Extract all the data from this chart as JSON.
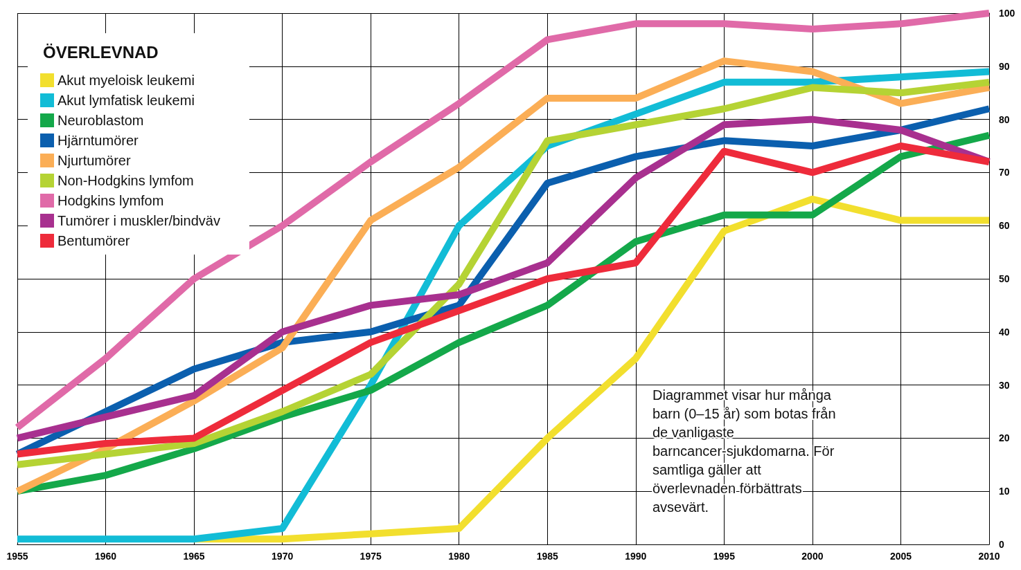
{
  "chart_data": {
    "type": "line",
    "legend_title": "ÖVERLEVNAD",
    "x": [
      1955,
      1960,
      1965,
      1970,
      1975,
      1980,
      1985,
      1990,
      1995,
      2000,
      2005,
      2010
    ],
    "xlim": [
      1955,
      2010
    ],
    "xticks": [
      1955,
      1960,
      1965,
      1970,
      1975,
      1980,
      1985,
      1990,
      1995,
      2000,
      2005,
      2010
    ],
    "ylim": [
      0,
      100
    ],
    "yticks": [
      0,
      10,
      20,
      30,
      40,
      50,
      60,
      70,
      80,
      90,
      100
    ],
    "grid": true,
    "legend": "top left",
    "marker": "none",
    "line_style": "solid",
    "series": [
      {
        "name": "Akut myeloisk leukemi",
        "color": "#f2df2e",
        "values": [
          null,
          null,
          1,
          1,
          2,
          3,
          20,
          35,
          59,
          65,
          61,
          61
        ]
      },
      {
        "name": "Akut lymfatisk leukemi",
        "color": "#12bcd6",
        "values": [
          1,
          1,
          1,
          3,
          30,
          60,
          75,
          81,
          87,
          87,
          88,
          89
        ]
      },
      {
        "name": "Neuroblastom",
        "color": "#14a84a",
        "values": [
          10,
          13,
          18,
          24,
          29,
          38,
          45,
          57,
          62,
          62,
          73,
          77
        ]
      },
      {
        "name": "Hjärntumörer",
        "color": "#0b5fae",
        "values": [
          17,
          25,
          33,
          38,
          40,
          45,
          68,
          73,
          76,
          75,
          78,
          82
        ]
      },
      {
        "name": "Njurtumörer",
        "color": "#fbae56",
        "values": [
          10,
          18,
          27,
          37,
          61,
          71,
          84,
          84,
          91,
          89,
          83,
          86
        ]
      },
      {
        "name": "Non-Hodgkins lymfom",
        "color": "#b5d334",
        "values": [
          15,
          17,
          19,
          25,
          32,
          49,
          76,
          79,
          82,
          86,
          85,
          87
        ]
      },
      {
        "name": "Hodgkins lymfom",
        "color": "#e06aa8",
        "values": [
          22,
          35,
          50,
          60,
          72,
          83,
          95,
          98,
          98,
          97,
          98,
          100
        ]
      },
      {
        "name": "Tumörer i muskler/bindväv",
        "color": "#a8308f",
        "values": [
          20,
          24,
          28,
          40,
          45,
          47,
          53,
          69,
          79,
          80,
          78,
          72
        ]
      },
      {
        "name": "Bentumörer",
        "color": "#ee2b3b",
        "values": [
          17,
          19,
          20,
          29,
          38,
          44,
          50,
          53,
          74,
          70,
          75,
          72
        ]
      }
    ],
    "annotations": [
      "Diagrammet visar hur många barn (0–15 år) som botas från de vanligaste barncancer-sjukdomarna. För samtliga gäller att överlevnaden förbättrats avsevärt."
    ]
  }
}
